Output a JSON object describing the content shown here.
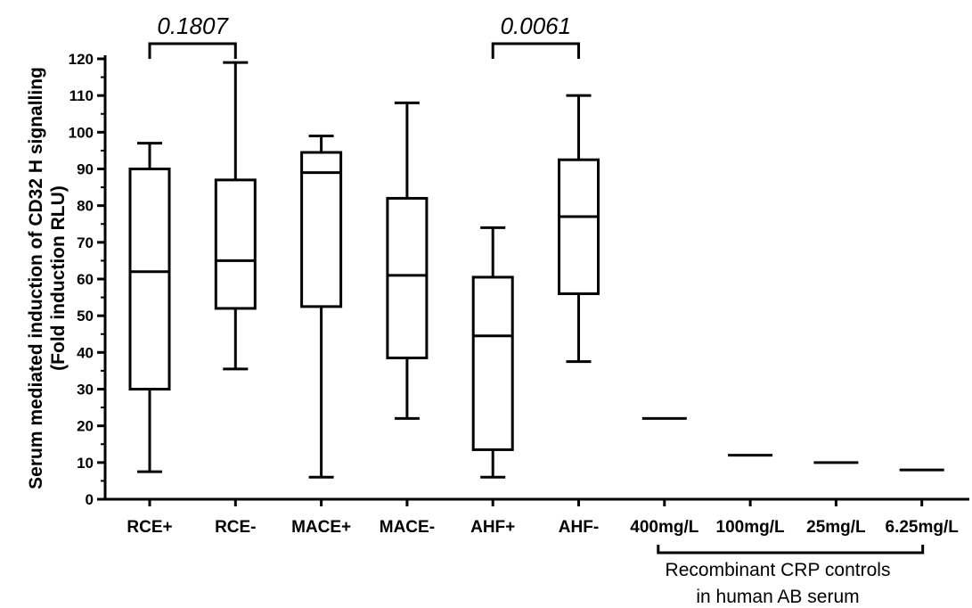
{
  "chart_data": {
    "type": "box",
    "ylabel_line1": "Serum mediated induction of  CD32 H signalling",
    "ylabel_line2": "(Fold induction RLU)",
    "ylim": [
      0,
      120
    ],
    "y_ticks": [
      0,
      10,
      20,
      30,
      40,
      50,
      60,
      70,
      80,
      90,
      100,
      110,
      120
    ],
    "categories": [
      "RCE+",
      "RCE-",
      "MACE+",
      "MACE-",
      "AHF+",
      "AHF-",
      "400mg/L",
      "100mg/L",
      "25mg/L",
      "6.25mg/L"
    ],
    "boxes": [
      {
        "category": "RCE+",
        "min": 7.5,
        "q1": 30,
        "median": 62,
        "q3": 90,
        "max": 97
      },
      {
        "category": "RCE-",
        "min": 35.5,
        "q1": 52,
        "median": 65,
        "q3": 87,
        "max": 119
      },
      {
        "category": "MACE+",
        "min": 6,
        "q1": 52.5,
        "median": 89,
        "q3": 94.5,
        "max": 99
      },
      {
        "category": "MACE-",
        "min": 22,
        "q1": 38.5,
        "median": 61,
        "q3": 82,
        "max": 108
      },
      {
        "category": "AHF+",
        "min": 6,
        "q1": 13.5,
        "median": 44.5,
        "q3": 60.5,
        "max": 74
      },
      {
        "category": "AHF-",
        "min": 37.5,
        "q1": 56,
        "median": 77,
        "q3": 92.5,
        "max": 110
      }
    ],
    "controls": [
      {
        "category": "400mg/L",
        "value": 22
      },
      {
        "category": "100mg/L",
        "value": 12
      },
      {
        "category": "25mg/L",
        "value": 10
      },
      {
        "category": "6.25mg/L",
        "value": 8
      }
    ],
    "comparisons": [
      {
        "from": "RCE+",
        "to": "RCE-",
        "p_value": "0.1807"
      },
      {
        "from": "AHF+",
        "to": "AHF-",
        "p_value": "0.0061"
      }
    ],
    "group_annotation": {
      "line1": "Recombinant CRP controls",
      "line2": "in human AB serum",
      "categories": [
        "400mg/L",
        "100mg/L",
        "25mg/L",
        "6.25mg/L"
      ]
    }
  }
}
